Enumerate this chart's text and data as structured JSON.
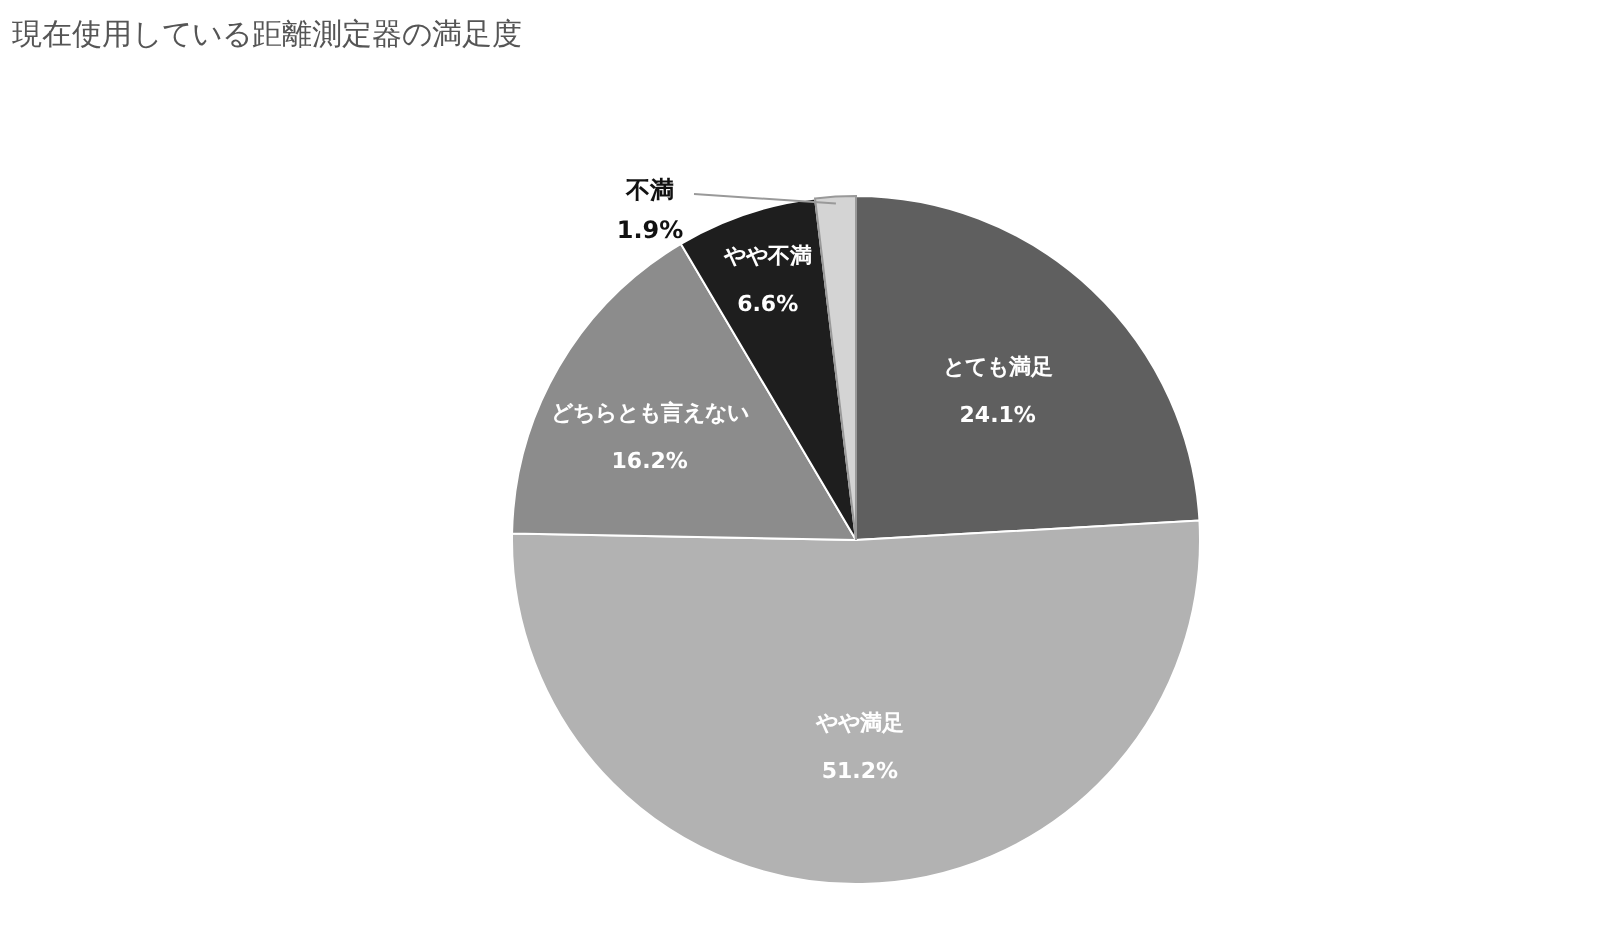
{
  "chart_data": {
    "type": "pie",
    "title": "現在使用している距離測定器の満足度",
    "categories": [
      "とても満足",
      "やや満足",
      "どちらとも言えない",
      "やや不満",
      "不満"
    ],
    "values": [
      24.1,
      51.2,
      16.2,
      6.6,
      1.9
    ],
    "value_labels": [
      "24.1%",
      "51.2%",
      "16.2%",
      "6.6%",
      "1.9%"
    ],
    "colors": [
      "#5f5f5f",
      "#b2b2b2",
      "#8c8c8c",
      "#1e1e1e",
      "#d4d4d4"
    ]
  }
}
